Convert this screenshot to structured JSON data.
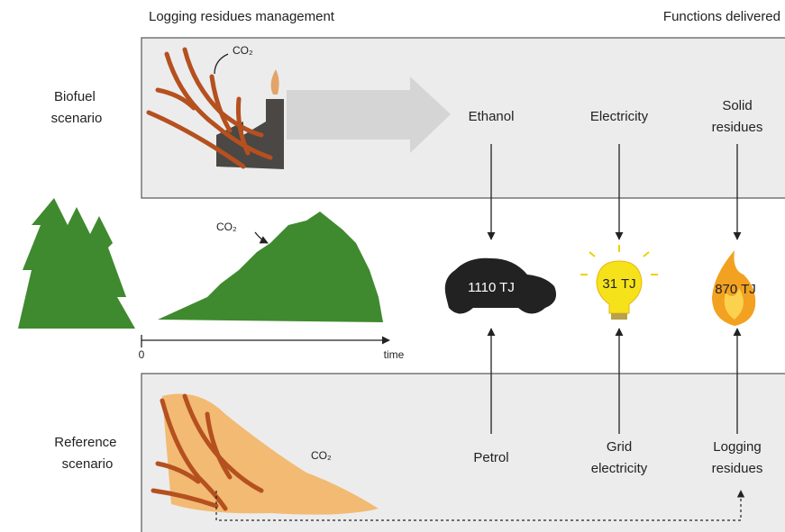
{
  "header": {
    "left": "Logging residues management",
    "right": "Functions delivered"
  },
  "scenarios": {
    "biofuel": [
      "Biofuel",
      "scenario"
    ],
    "reference": [
      "Reference",
      "scenario"
    ]
  },
  "co2_labels": [
    "CO₂",
    "CO₂",
    "CO₂"
  ],
  "timeline": {
    "origin": "0",
    "label": "time"
  },
  "functions": [
    {
      "biofuel": [
        "Ethanol"
      ],
      "amount": "1110 TJ",
      "reference": [
        "Petrol"
      ]
    },
    {
      "biofuel": [
        "Electricity"
      ],
      "amount": "31 TJ",
      "reference": [
        "Grid",
        "electricity"
      ]
    },
    {
      "biofuel": [
        "Solid",
        "residues"
      ],
      "amount": "870 TJ",
      "reference": [
        "Logging",
        "residues"
      ]
    }
  ]
}
